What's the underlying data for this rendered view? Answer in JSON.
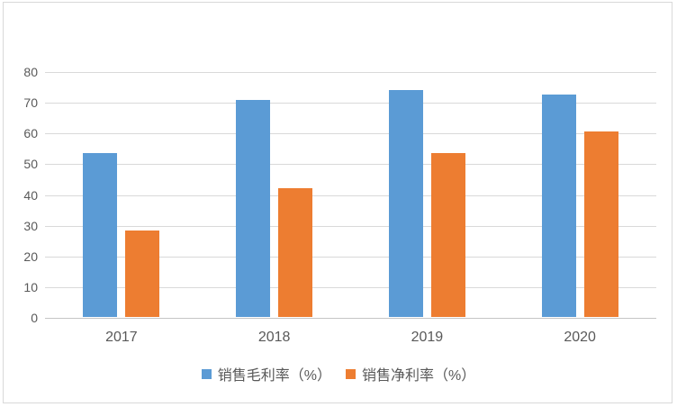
{
  "chart_data": {
    "type": "bar",
    "title": "",
    "xlabel": "",
    "ylabel": "",
    "categories": [
      "2017",
      "2018",
      "2019",
      "2020"
    ],
    "series": [
      {
        "key": "gross-margin",
        "name": "销售毛利率（%）",
        "color": "#5B9BD5",
        "values": [
          53.4,
          70.6,
          73.9,
          72.3
        ]
      },
      {
        "key": "net-margin",
        "name": "销售净利率（%）",
        "color": "#ED7D31",
        "values": [
          28.2,
          41.9,
          53.4,
          60.5
        ]
      }
    ],
    "ylim": [
      0,
      80
    ],
    "yticks": [
      0,
      10,
      20,
      30,
      40,
      50,
      60,
      70,
      80
    ],
    "grid": true,
    "legend_position": "bottom"
  },
  "colors": {
    "grid": "#D9D9D9",
    "axis_line": "#C5C5C5",
    "tick_text": "#595959",
    "frame_border": "#D9D9D9",
    "background": "#FFFFFF"
  }
}
